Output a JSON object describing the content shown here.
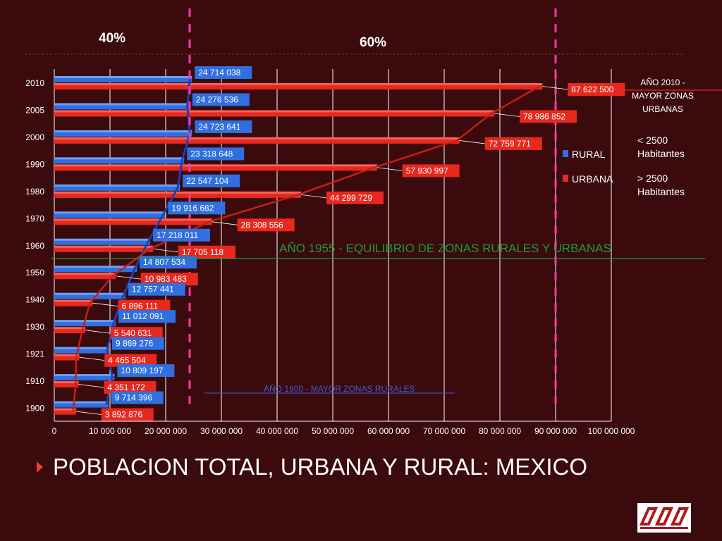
{
  "share_labels": {
    "left": "40%",
    "right": "60%"
  },
  "title": "POBLACION TOTAL, URBANA Y RURAL: MEXICO",
  "legend": {
    "rural": {
      "label": "RURAL",
      "desc": "< 2500 Habitantes",
      "desc_lines": [
        "< 2500",
        "Habitantes"
      ]
    },
    "urbana": {
      "label": "URBANA",
      "desc": "> 2500 Habitantes",
      "desc_lines": [
        "> 2500",
        "Habitantes"
      ]
    }
  },
  "annotations": {
    "y2010": "AÑO 2010 - MAYOR ZONAS URBANAS",
    "y2010_lines": [
      "AÑO 2010 -",
      "MAYOR ZONAS",
      "URBANAS"
    ],
    "y1955": "AÑO 1955 -  EQUILIBRIO DE ZONAS RURALES Y URBANAS",
    "y1900": "AÑO 1900 - MAYOR ZONAS RURALES"
  },
  "colors": {
    "background": "#3a0a0d",
    "rural": "#2f6fe0",
    "urbana": "#e8281e",
    "divider": "#ff3aa6",
    "equilibrium": "#1e9a3a"
  },
  "chart_data": {
    "type": "bar",
    "orientation": "horizontal",
    "categories": [
      "2010",
      "2005",
      "2000",
      "1990",
      "1980",
      "1970",
      "1960",
      "1950",
      "1940",
      "1930",
      "1921",
      "1910",
      "1900"
    ],
    "series": [
      {
        "name": "RURAL",
        "values": [
          24714038,
          24276536,
          24723641,
          23318648,
          22547104,
          19916682,
          17218011,
          14807534,
          12757441,
          11012091,
          9869276,
          10809197,
          9714396
        ],
        "labels": [
          "24 714 038",
          "24 276 536",
          "24 723 641",
          "23 318 648",
          "22 547 104",
          "19 916 682",
          "17 218 011",
          "14 807 534",
          "12 757 441",
          "11 012 091",
          "9 869 276",
          "10 809 197",
          "9 714 396"
        ]
      },
      {
        "name": "URBANA",
        "values": [
          87622500,
          78986852,
          72759771,
          57930997,
          44299729,
          28308556,
          17705118,
          10983483,
          6896111,
          5540631,
          4465504,
          4351172,
          3892876
        ],
        "labels": [
          "87 622 500",
          "78 986 852",
          "72 759 771",
          "57 930 997",
          "44 299 729",
          "28 308 556",
          "17 705 118",
          "10 983 483",
          "6 896 111",
          "5 540 631",
          "4 465 504",
          "4 351 172",
          "3 892 876"
        ]
      }
    ],
    "xlim": [
      0,
      100000000
    ],
    "xticks": [
      "0",
      "10 000 000",
      "20 000 000",
      "30 000 000",
      "40 000 000",
      "50 000 000",
      "60 000 000",
      "70 000 000",
      "80 000 000",
      "90 000 000",
      "100 000 000"
    ],
    "grid": "vertical",
    "legend_position": "right"
  }
}
